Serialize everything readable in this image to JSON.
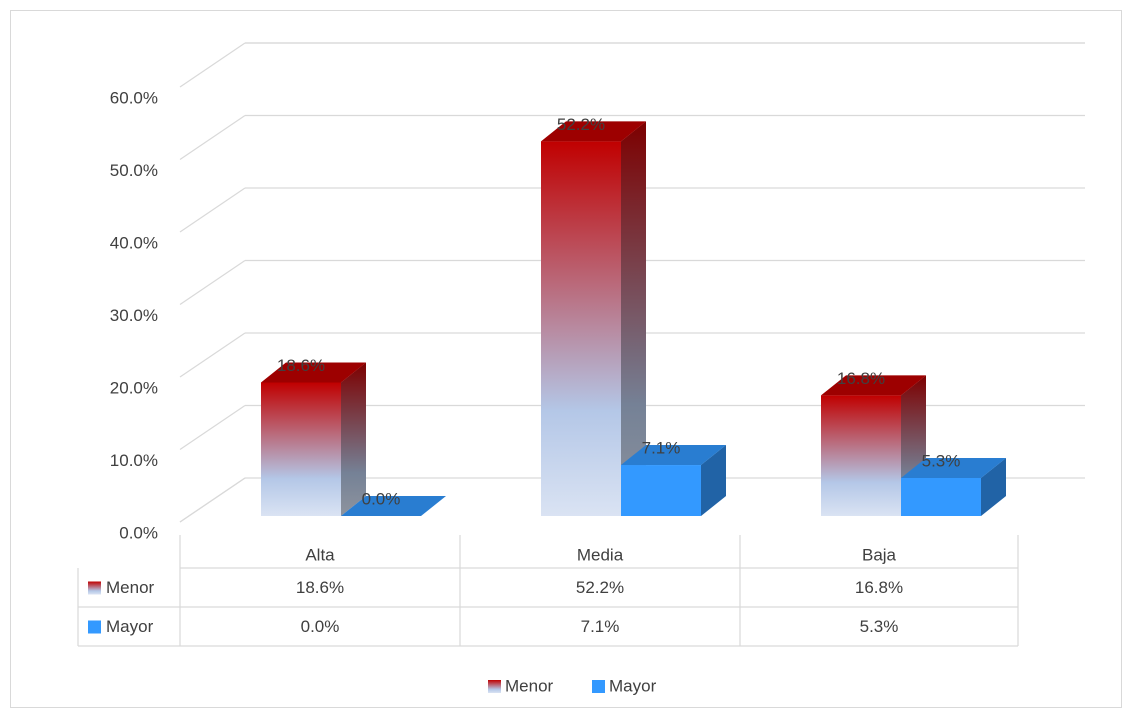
{
  "chart_data": {
    "type": "bar3d",
    "categories": [
      "Alta",
      "Media",
      "Baja"
    ],
    "series": [
      {
        "name": "Menor",
        "color": "#c00000",
        "style": "gradient",
        "values": [
          18.6,
          52.2,
          16.8
        ],
        "value_labels": [
          "18.6%",
          "52.2%",
          "16.8%"
        ]
      },
      {
        "name": "Mayor",
        "color": "#3399ff",
        "style": "solid",
        "values": [
          0.0,
          7.1,
          5.3
        ],
        "value_labels": [
          "0.0%",
          "7.1%",
          "5.3%"
        ]
      }
    ],
    "ylim": [
      0,
      60
    ],
    "yticks": [
      {
        "value": 0,
        "label": "0.0%"
      },
      {
        "value": 10,
        "label": "10.0%"
      },
      {
        "value": 20,
        "label": "20.0%"
      },
      {
        "value": 30,
        "label": "30.0%"
      },
      {
        "value": 40,
        "label": "40.0%"
      },
      {
        "value": 50,
        "label": "50.0%"
      },
      {
        "value": 60,
        "label": "60.0%"
      }
    ],
    "grid": true,
    "data_table": true,
    "legend": "bottom"
  }
}
